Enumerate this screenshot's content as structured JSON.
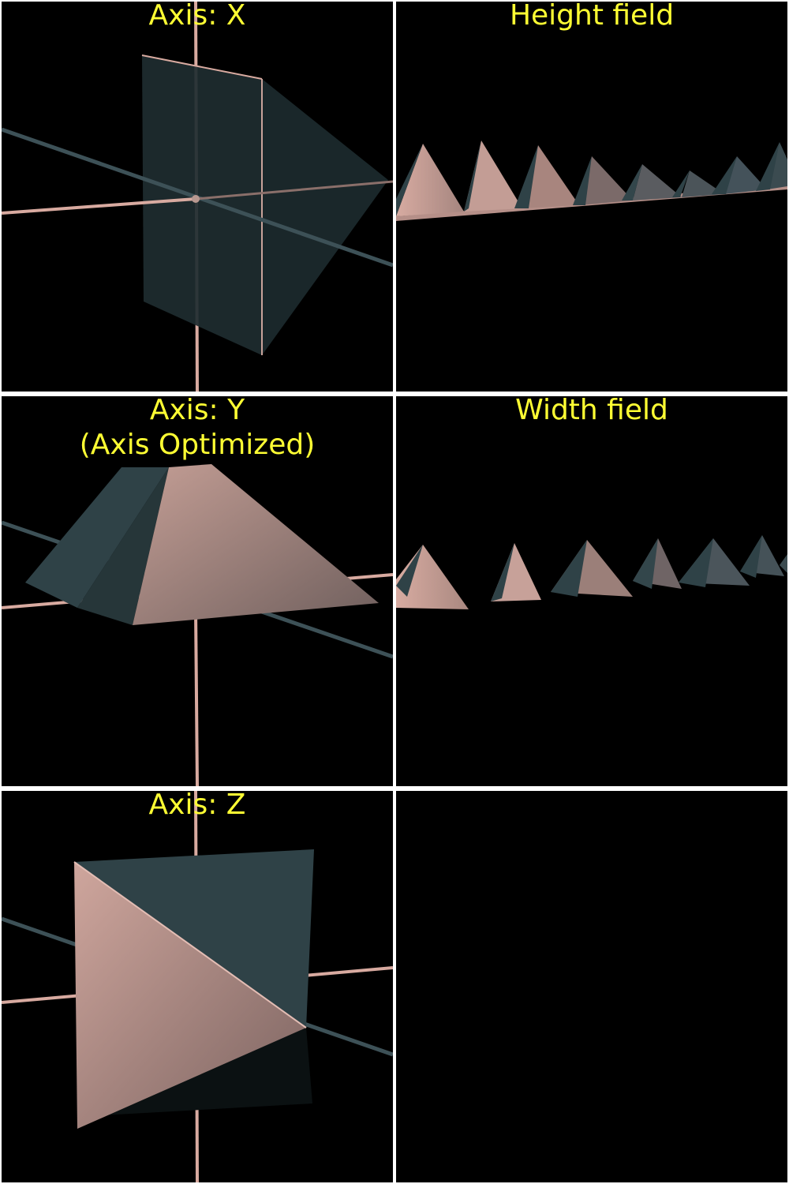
{
  "panels": [
    {
      "id": "axis-x",
      "title": [
        "Axis: X"
      ]
    },
    {
      "id": "height-field",
      "title": [
        "Height field"
      ]
    },
    {
      "id": "axis-y",
      "title": [
        "Axis: Y",
        "(Axis Optimized)"
      ]
    },
    {
      "id": "width-field",
      "title": [
        "Width field"
      ]
    },
    {
      "id": "axis-z",
      "title": [
        "Axis: Z"
      ]
    },
    {
      "id": "empty",
      "title": []
    }
  ],
  "colors": {
    "background": "#000000",
    "divider": "#ffffff",
    "title_text": "#ffff33",
    "pink_face": "#c9a39a",
    "slate_face": "#2f4247",
    "axis_pink": "#d8aaa0",
    "axis_slate": "#3d5157"
  }
}
